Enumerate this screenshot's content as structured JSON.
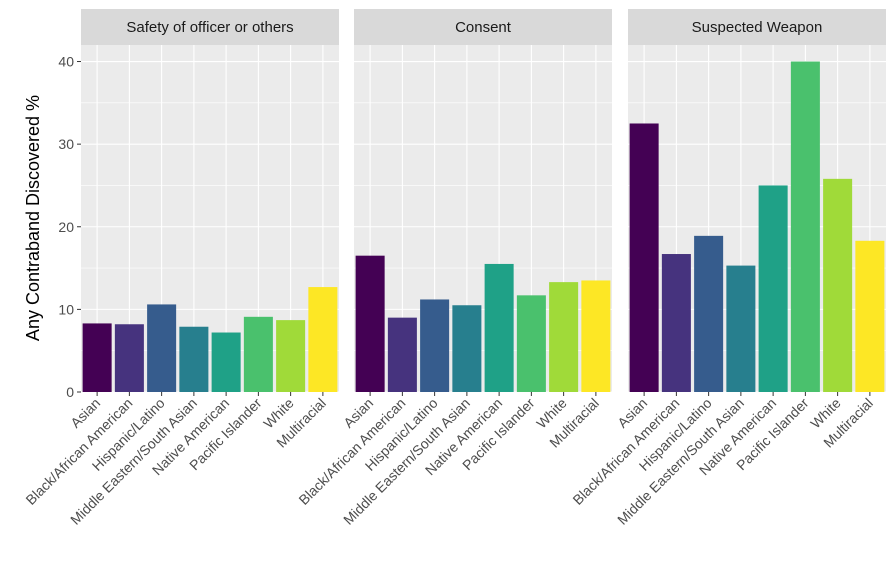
{
  "chart_data": {
    "type": "bar",
    "ylabel": "Any Contraband Discovered %",
    "xlabel": "",
    "ylim": [
      0,
      42
    ],
    "yticks": [
      0,
      10,
      20,
      30,
      40
    ],
    "categories": [
      "Asian",
      "Black/African American",
      "Hispanic/Latino",
      "Middle Eastern/South Asian",
      "Native American",
      "Pacific Islander",
      "White",
      "Multiracial"
    ],
    "colors": [
      "#440154",
      "#46337e",
      "#365c8d",
      "#277f8e",
      "#1fa187",
      "#4ac16d",
      "#a0da39",
      "#fde725"
    ],
    "grid": true,
    "legend": "none",
    "panels": [
      {
        "title": "Safety of officer or others",
        "values": [
          8.3,
          8.2,
          10.6,
          7.9,
          7.2,
          9.1,
          8.7,
          12.7
        ]
      },
      {
        "title": "Consent",
        "values": [
          16.5,
          9.0,
          11.2,
          10.5,
          15.5,
          11.7,
          13.3,
          13.5
        ]
      },
      {
        "title": "Suspected Weapon",
        "values": [
          32.5,
          16.7,
          18.9,
          15.3,
          25.0,
          40.0,
          25.8,
          18.3
        ]
      }
    ]
  }
}
